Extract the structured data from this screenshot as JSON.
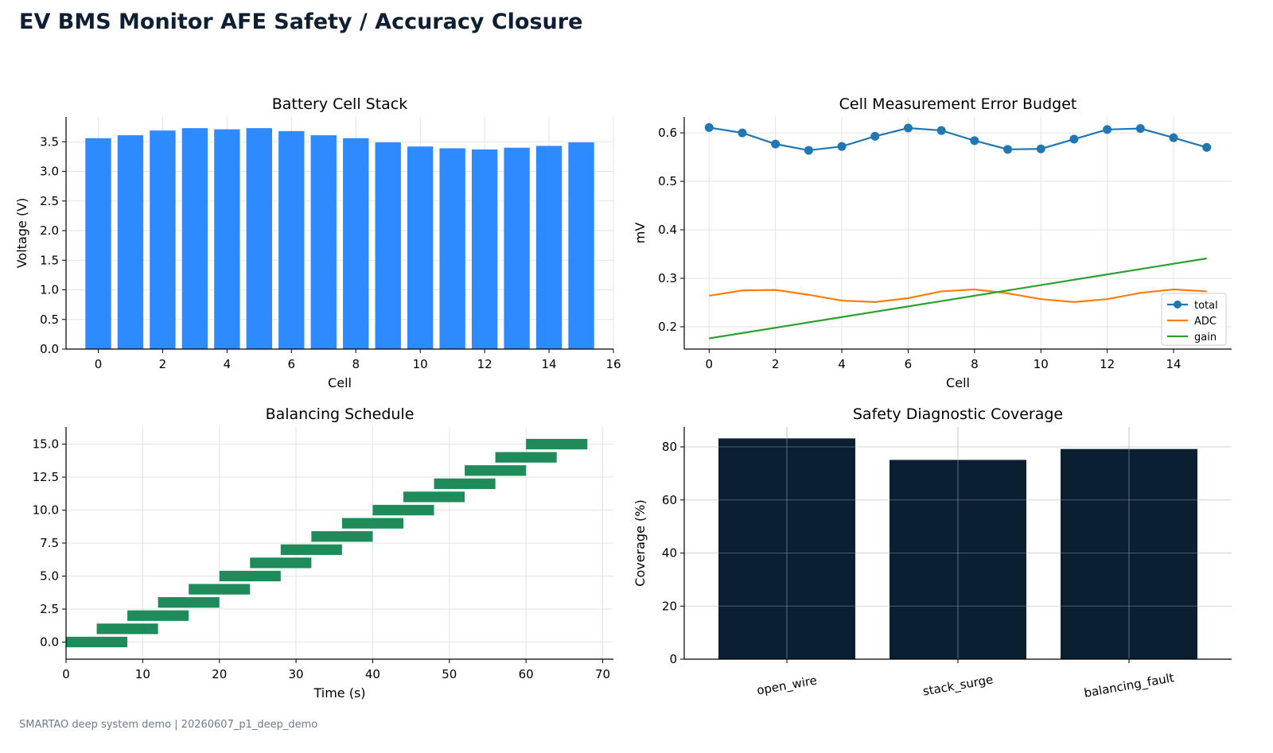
{
  "page": {
    "title": "EV BMS Monitor AFE Safety / Accuracy Closure",
    "footer": "SMARTAO deep system demo | 20260607_p1_deep_demo"
  },
  "chart_data": [
    {
      "id": "cell_stack",
      "type": "bar",
      "title": "Battery Cell Stack",
      "xlabel": "Cell",
      "ylabel": "Voltage (V)",
      "x": [
        0,
        1,
        2,
        3,
        4,
        5,
        6,
        7,
        8,
        9,
        10,
        11,
        12,
        13,
        14,
        15
      ],
      "values": [
        3.56,
        3.61,
        3.69,
        3.73,
        3.71,
        3.73,
        3.68,
        3.61,
        3.56,
        3.49,
        3.42,
        3.39,
        3.37,
        3.4,
        3.43,
        3.49
      ],
      "xlim": [
        -1,
        16
      ],
      "ylim": [
        0,
        3.92
      ],
      "xticks": [
        0,
        2,
        4,
        6,
        8,
        10,
        12,
        14,
        16
      ],
      "yticks": [
        0.0,
        0.5,
        1.0,
        1.5,
        2.0,
        2.5,
        3.0,
        3.5
      ],
      "ytick_labels": [
        "0.0",
        "0.5",
        "1.0",
        "1.5",
        "2.0",
        "2.5",
        "3.0",
        "3.5"
      ],
      "color": "#2e8bff",
      "grid": true
    },
    {
      "id": "error_budget",
      "type": "line",
      "title": "Cell Measurement Error Budget",
      "xlabel": "Cell",
      "ylabel": "mV",
      "x": [
        0,
        1,
        2,
        3,
        4,
        5,
        6,
        7,
        8,
        9,
        10,
        11,
        12,
        13,
        14,
        15
      ],
      "series": [
        {
          "name": "total",
          "color": "#1f77b4",
          "marker": true,
          "values": [
            0.611,
            0.6,
            0.577,
            0.564,
            0.572,
            0.593,
            0.61,
            0.605,
            0.584,
            0.566,
            0.567,
            0.587,
            0.607,
            0.609,
            0.59,
            0.57
          ]
        },
        {
          "name": "ADC",
          "color": "#ff7f0e",
          "marker": false,
          "values": [
            0.264,
            0.275,
            0.276,
            0.266,
            0.254,
            0.251,
            0.259,
            0.273,
            0.277,
            0.269,
            0.257,
            0.251,
            0.257,
            0.27,
            0.277,
            0.273
          ]
        },
        {
          "name": "gain",
          "color": "#2ca02c",
          "marker": false,
          "values": [
            0.176,
            0.187,
            0.198,
            0.209,
            0.22,
            0.231,
            0.242,
            0.253,
            0.264,
            0.275,
            0.286,
            0.297,
            0.308,
            0.319,
            0.33,
            0.341
          ]
        }
      ],
      "xlim": [
        -0.75,
        15.75
      ],
      "ylim": [
        0.154,
        0.633
      ],
      "xticks": [
        0,
        2,
        4,
        6,
        8,
        10,
        12,
        14
      ],
      "yticks": [
        0.2,
        0.3,
        0.4,
        0.5,
        0.6
      ],
      "ytick_labels": [
        "0.2",
        "0.3",
        "0.4",
        "0.5",
        "0.6"
      ],
      "legend": "lower-right",
      "grid": true
    },
    {
      "id": "balancing",
      "type": "bar",
      "title": "Balancing Schedule",
      "xlabel": "Time (s)",
      "ylabel": "",
      "tasks": [
        {
          "cell": 0,
          "start": 0,
          "duration": 8
        },
        {
          "cell": 1,
          "start": 4,
          "duration": 8
        },
        {
          "cell": 2,
          "start": 8,
          "duration": 8
        },
        {
          "cell": 3,
          "start": 12,
          "duration": 8
        },
        {
          "cell": 4,
          "start": 16,
          "duration": 8
        },
        {
          "cell": 5,
          "start": 20,
          "duration": 8
        },
        {
          "cell": 6,
          "start": 24,
          "duration": 8
        },
        {
          "cell": 7,
          "start": 28,
          "duration": 8
        },
        {
          "cell": 8,
          "start": 32,
          "duration": 8
        },
        {
          "cell": 9,
          "start": 36,
          "duration": 8
        },
        {
          "cell": 10,
          "start": 40,
          "duration": 8
        },
        {
          "cell": 11,
          "start": 44,
          "duration": 8
        },
        {
          "cell": 12,
          "start": 48,
          "duration": 8
        },
        {
          "cell": 13,
          "start": 52,
          "duration": 8
        },
        {
          "cell": 14,
          "start": 56,
          "duration": 8
        },
        {
          "cell": 15,
          "start": 60,
          "duration": 8
        }
      ],
      "xlim": [
        0,
        71.4
      ],
      "ylim": [
        -1.3,
        16.3
      ],
      "xticks": [
        0,
        10,
        20,
        30,
        40,
        50,
        60,
        70
      ],
      "yticks": [
        0.0,
        2.5,
        5.0,
        7.5,
        10.0,
        12.5,
        15.0
      ],
      "ytick_labels": [
        "0.0",
        "2.5",
        "5.0",
        "7.5",
        "10.0",
        "12.5",
        "15.0"
      ],
      "color": "#1f8a5a",
      "grid": true
    },
    {
      "id": "diag_coverage",
      "type": "bar",
      "title": "Safety Diagnostic Coverage",
      "xlabel": "",
      "ylabel": "Coverage (%)",
      "categories": [
        "open_wire",
        "stack_surge",
        "balancing_fault"
      ],
      "values": [
        83.2,
        75.1,
        79.2
      ],
      "ylim": [
        0,
        87.5
      ],
      "yticks": [
        0,
        20,
        40,
        60,
        80
      ],
      "ytick_labels": [
        "0",
        "20",
        "40",
        "60",
        "80"
      ],
      "color": "#0b1f33",
      "grid": true
    }
  ]
}
